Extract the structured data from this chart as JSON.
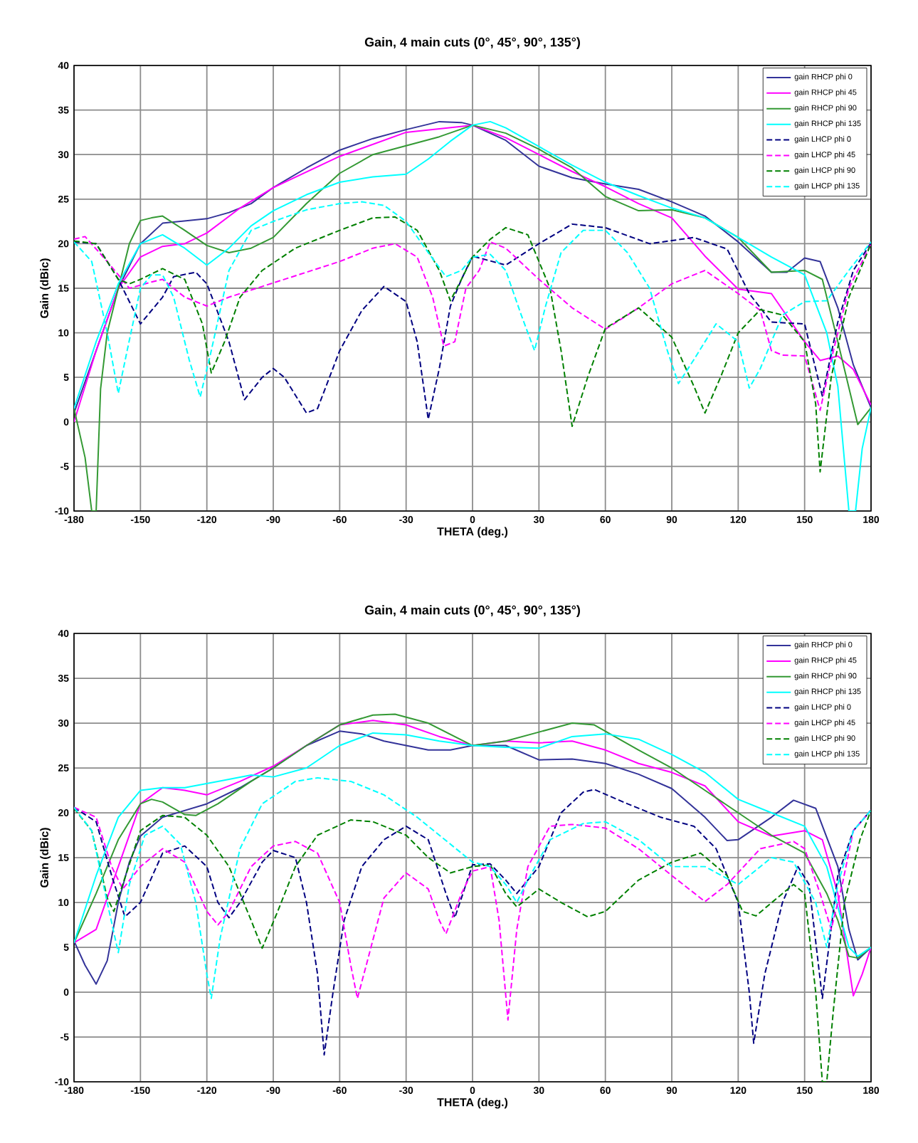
{
  "chart_data": [
    {
      "type": "line",
      "title": "Gain, 4 main cuts (0°, 45°, 90°, 135°)",
      "xlabel": "THETA (deg.)",
      "ylabel": "Gain (dBic)",
      "xlim": [
        -180,
        180
      ],
      "ylim": [
        -10,
        40
      ],
      "xticks": [
        -180,
        -150,
        -120,
        -90,
        -60,
        -30,
        0,
        30,
        60,
        90,
        120,
        150,
        180
      ],
      "yticks": [
        -10,
        -5,
        0,
        5,
        10,
        15,
        20,
        25,
        30,
        35,
        40
      ],
      "grid": true,
      "legend": "top right",
      "marker": "none",
      "series": [
        {
          "name": "gain RHCP phi 0",
          "color": "#333399",
          "line_style": "solid",
          "x": [
            -180,
            -160,
            -150,
            -140,
            -120,
            -110,
            -100,
            -90,
            -75,
            -60,
            -45,
            -30,
            -15,
            -5,
            0,
            15,
            30,
            45,
            60,
            75,
            90,
            105,
            120,
            135,
            142,
            150,
            157,
            165,
            172,
            180
          ],
          "values": [
            1,
            15,
            20,
            22.3,
            22.8,
            23.5,
            24.5,
            26.3,
            28.5,
            30.5,
            31.8,
            32.8,
            33.7,
            33.6,
            33.3,
            31.6,
            28.7,
            27.4,
            26.7,
            26.1,
            24.7,
            23.1,
            20.2,
            16.8,
            16.8,
            18.4,
            18,
            12.8,
            6.4,
            1.6
          ]
        },
        {
          "name": "gain RHCP phi 45",
          "color": "#ff00ff",
          "line_style": "solid",
          "x": [
            -180,
            -170,
            -160,
            -150,
            -140,
            -130,
            -120,
            -105,
            -90,
            -60,
            -30,
            0,
            15,
            30,
            45,
            60,
            75,
            90,
            105,
            120,
            135,
            150,
            157,
            165,
            172,
            180
          ],
          "values": [
            0,
            8,
            15,
            18.5,
            19.7,
            20,
            21.2,
            24,
            26.3,
            29.8,
            32.5,
            33.3,
            31.9,
            30,
            28.1,
            26.4,
            24.5,
            22.9,
            18.6,
            14.9,
            14.4,
            9,
            6.9,
            7.4,
            5.9,
            1.9
          ]
        },
        {
          "name": "gain RHCP phi 90",
          "color": "#339933",
          "line_style": "solid",
          "x": [
            -180,
            -175,
            -172,
            -170,
            -168,
            -165,
            -160,
            -155,
            -150,
            -145,
            -140,
            -130,
            -120,
            -110,
            -100,
            -90,
            -75,
            -60,
            -45,
            -30,
            -15,
            0,
            15,
            30,
            45,
            60,
            75,
            90,
            105,
            120,
            135,
            150,
            158,
            165,
            174,
            180
          ],
          "values": [
            1.5,
            -4,
            -10,
            -10,
            3.7,
            10,
            15,
            20,
            22.6,
            22.9,
            23.1,
            21.5,
            19.8,
            19,
            19.5,
            20.7,
            24.5,
            27.9,
            30,
            31,
            32,
            33.3,
            32.4,
            30.6,
            28.5,
            25.3,
            23.7,
            23.8,
            22.9,
            20.7,
            16.8,
            17,
            16,
            9,
            -0.3,
            1.6
          ]
        },
        {
          "name": "gain RHCP phi 135",
          "color": "#00ffff",
          "line_style": "solid",
          "x": [
            -180,
            -170,
            -160,
            -150,
            -140,
            -130,
            -120,
            -110,
            -100,
            -90,
            -75,
            -60,
            -45,
            -30,
            -20,
            -10,
            0,
            8,
            15,
            30,
            45,
            60,
            75,
            90,
            105,
            120,
            135,
            150,
            160,
            165,
            170,
            173,
            176,
            180
          ],
          "values": [
            1.5,
            9,
            15.5,
            20,
            21,
            19.5,
            17.6,
            19.5,
            22,
            23.7,
            25.5,
            26.9,
            27.5,
            27.8,
            29.5,
            31.5,
            33.3,
            33.7,
            33,
            30.9,
            28.8,
            26.9,
            25.4,
            24,
            22.9,
            20.7,
            18.5,
            16.5,
            10,
            4,
            -10,
            -10,
            -3,
            1.6
          ]
        },
        {
          "name": "gain LHCP phi 0",
          "color": "#000080",
          "line_style": "dashed",
          "x": [
            -180,
            -170,
            -160,
            -150,
            -140,
            -135,
            -125,
            -120,
            -110,
            -103,
            -95,
            -90,
            -85,
            -75,
            -70,
            -60,
            -50,
            -40,
            -30,
            -25,
            -20,
            -15,
            -10,
            -5,
            0,
            15,
            30,
            45,
            60,
            80,
            100,
            115,
            125,
            135,
            150,
            158,
            165,
            172,
            180
          ],
          "values": [
            20.2,
            20,
            16,
            11,
            14,
            16.3,
            16.8,
            15.5,
            9,
            2.5,
            5,
            6,
            5,
            1,
            1.5,
            8,
            12.5,
            15.2,
            13.5,
            9,
            0.3,
            6,
            13,
            16,
            18.6,
            17.6,
            20,
            22.2,
            21.8,
            20,
            20.7,
            19.4,
            14.4,
            11.2,
            11,
            2.9,
            11.2,
            17,
            20.1
          ]
        },
        {
          "name": "gain LHCP phi 45",
          "color": "#ff00ff",
          "line_style": "dashed",
          "x": [
            -180,
            -175,
            -165,
            -155,
            -145,
            -140,
            -130,
            -120,
            -110,
            -90,
            -60,
            -45,
            -35,
            -25,
            -18,
            -13,
            -8,
            -3,
            3,
            8,
            15,
            30,
            45,
            60,
            75,
            90,
            105,
            120,
            130,
            135,
            140,
            150,
            157,
            163,
            170,
            180
          ],
          "values": [
            20.5,
            20.8,
            18,
            15,
            15.7,
            16,
            14,
            13,
            14,
            15.6,
            18,
            19.5,
            20,
            18.5,
            14,
            8.5,
            9,
            15,
            17,
            20.2,
            19.5,
            16,
            12.8,
            10.4,
            12.8,
            15.5,
            17,
            14.4,
            12.5,
            8,
            7.5,
            7.4,
            1.3,
            8,
            15,
            20
          ]
        },
        {
          "name": "gain LHCP phi 90",
          "color": "#008000",
          "line_style": "dashed",
          "x": [
            -180,
            -170,
            -160,
            -155,
            -150,
            -140,
            -130,
            -122,
            -118,
            -112,
            -105,
            -95,
            -80,
            -60,
            -45,
            -35,
            -25,
            -15,
            -10,
            -5,
            0,
            8,
            15,
            25,
            35,
            40,
            45,
            52,
            60,
            75,
            90,
            100,
            105,
            112,
            120,
            130,
            140,
            150,
            155,
            157,
            162,
            170,
            180
          ],
          "values": [
            20.3,
            20,
            16,
            15.5,
            16,
            17.2,
            16,
            11,
            5.5,
            9,
            14,
            17,
            19.5,
            21.5,
            22.9,
            23,
            21.5,
            17,
            13.6,
            16,
            18.5,
            20.5,
            21.8,
            21,
            15,
            8,
            -0.5,
            5,
            10.5,
            12.8,
            9.5,
            4,
            1,
            5,
            10,
            12.6,
            12,
            9,
            2,
            -5.6,
            5,
            14,
            20
          ]
        },
        {
          "name": "gain LHCP phi 135",
          "color": "#00ffff",
          "line_style": "dashed",
          "x": [
            -180,
            -172,
            -165,
            -160,
            -156,
            -150,
            -145,
            -140,
            -135,
            -128,
            -123,
            -118,
            -110,
            -100,
            -90,
            -75,
            -60,
            -50,
            -40,
            -30,
            -20,
            -12,
            -5,
            0,
            8,
            15,
            22,
            28,
            33,
            40,
            50,
            60,
            70,
            80,
            88,
            93,
            100,
            110,
            120,
            125,
            130,
            140,
            150,
            160,
            170,
            180
          ],
          "values": [
            20.2,
            18,
            10,
            3.2,
            8,
            15,
            16.5,
            16.5,
            14,
            7,
            2.8,
            8,
            17,
            21.5,
            22.5,
            23.8,
            24.5,
            24.7,
            24.3,
            22.5,
            19,
            16.3,
            17,
            18.5,
            18.8,
            17,
            12,
            8,
            13,
            19,
            21.5,
            21.5,
            19,
            15,
            8,
            4.3,
            7,
            11,
            9,
            3.8,
            6,
            12,
            13.5,
            13.6,
            17,
            20.2
          ]
        }
      ]
    },
    {
      "type": "line",
      "title": "Gain, 4 main cuts (0°, 45°, 90°, 135°)",
      "xlabel": "THETA (deg.)",
      "ylabel": "Gain (dBic)",
      "xlim": [
        -180,
        180
      ],
      "ylim": [
        -10,
        40
      ],
      "xticks": [
        -180,
        -150,
        -120,
        -90,
        -60,
        -30,
        0,
        30,
        60,
        90,
        120,
        150,
        180
      ],
      "yticks": [
        -10,
        -5,
        0,
        5,
        10,
        15,
        20,
        25,
        30,
        35,
        40
      ],
      "grid": true,
      "legend": "top right",
      "marker": "none",
      "series": [
        {
          "name": "gain RHCP phi 0",
          "color": "#333399",
          "line_style": "solid",
          "x": [
            -180,
            -175,
            -170,
            -165,
            -160,
            -155,
            -150,
            -140,
            -120,
            -105,
            -90,
            -75,
            -60,
            -50,
            -40,
            -30,
            -20,
            -10,
            0,
            15,
            30,
            45,
            60,
            75,
            90,
            105,
            115,
            120,
            135,
            145,
            155,
            165,
            170,
            174,
            180
          ],
          "values": [
            5.7,
            3,
            0.9,
            3.5,
            10,
            14.5,
            17.4,
            19.5,
            21,
            22.8,
            25,
            27.5,
            29.1,
            28.8,
            28,
            27.5,
            27,
            27,
            27.5,
            27.5,
            25.9,
            26,
            25.5,
            24.3,
            22.7,
            19.5,
            16.9,
            17,
            19.5,
            21.4,
            20.5,
            14,
            7,
            3.6,
            5
          ]
        },
        {
          "name": "gain RHCP phi 45",
          "color": "#ff00ff",
          "line_style": "solid",
          "x": [
            -180,
            -170,
            -160,
            -150,
            -140,
            -130,
            -120,
            -105,
            -90,
            -75,
            -60,
            -45,
            -30,
            -15,
            0,
            15,
            30,
            45,
            60,
            75,
            90,
            105,
            120,
            135,
            150,
            158,
            165,
            172,
            176,
            180
          ],
          "values": [
            5.5,
            7,
            14,
            21,
            22.8,
            22.5,
            22,
            23.5,
            25.2,
            27.5,
            29.8,
            30.3,
            29.8,
            28.5,
            27.5,
            28,
            27.8,
            28,
            27,
            25.5,
            24.5,
            23,
            19,
            17.4,
            18,
            17,
            11,
            -0.4,
            2,
            5
          ]
        },
        {
          "name": "gain RHCP phi 90",
          "color": "#339933",
          "line_style": "solid",
          "x": [
            -180,
            -170,
            -160,
            -150,
            -145,
            -140,
            -130,
            -125,
            -115,
            -100,
            -90,
            -75,
            -60,
            -45,
            -35,
            -20,
            0,
            15,
            30,
            45,
            55,
            75,
            90,
            105,
            120,
            135,
            150,
            160,
            165,
            170,
            174,
            180
          ],
          "values": [
            5.5,
            11,
            17,
            21,
            21.5,
            21.2,
            19.8,
            19.7,
            21,
            23.5,
            25,
            27.5,
            29.8,
            30.9,
            31,
            30,
            27.5,
            28,
            29,
            30,
            29.8,
            27,
            25,
            22.5,
            20,
            17.5,
            15.5,
            11,
            8,
            4,
            3.8,
            5
          ]
        },
        {
          "name": "gain RHCP phi 135",
          "color": "#00ffff",
          "line_style": "solid",
          "x": [
            -180,
            -170,
            -160,
            -150,
            -140,
            -130,
            -115,
            -100,
            -90,
            -75,
            -60,
            -45,
            -30,
            -15,
            0,
            15,
            30,
            45,
            60,
            75,
            90,
            105,
            120,
            135,
            150,
            160,
            170,
            174,
            180
          ],
          "values": [
            5.5,
            13,
            19.5,
            22.5,
            22.8,
            22.8,
            23.5,
            24.2,
            24,
            25,
            27.5,
            28.9,
            28.7,
            28,
            27.5,
            27.3,
            27.2,
            28.5,
            28.8,
            28.2,
            26.5,
            24.5,
            21.5,
            20,
            18.5,
            14,
            5,
            4,
            5
          ]
        },
        {
          "name": "gain LHCP phi 0",
          "color": "#000080",
          "line_style": "dashed",
          "x": [
            -180,
            -170,
            -163,
            -157,
            -150,
            -140,
            -130,
            -120,
            -115,
            -110,
            -105,
            -95,
            -90,
            -80,
            -75,
            -70,
            -67,
            -63,
            -58,
            -50,
            -40,
            -30,
            -20,
            -12,
            -8,
            0,
            8,
            15,
            20,
            30,
            40,
            50,
            55,
            70,
            85,
            100,
            110,
            120,
            125,
            127,
            132,
            140,
            147,
            152,
            158,
            165,
            172,
            180
          ],
          "values": [
            20.6,
            19,
            13,
            8.4,
            10,
            15.5,
            16.3,
            14,
            10,
            8.3,
            10,
            14.5,
            15.8,
            15,
            10,
            2,
            -7,
            0,
            8,
            14,
            17,
            18.5,
            17,
            11,
            8.3,
            14.2,
            14.3,
            12.5,
            11,
            14,
            20,
            22.3,
            22.6,
            21,
            19.5,
            18.5,
            16,
            10,
            0,
            -5.7,
            2,
            10,
            14,
            12,
            -0.7,
            13,
            18,
            20.3
          ]
        },
        {
          "name": "gain LHCP phi 45",
          "color": "#ff00ff",
          "line_style": "dashed",
          "x": [
            -180,
            -170,
            -163,
            -158,
            -150,
            -140,
            -130,
            -120,
            -115,
            -110,
            -100,
            -90,
            -80,
            -70,
            -60,
            -55,
            -52,
            -48,
            -40,
            -30,
            -20,
            -15,
            -12,
            -5,
            0,
            8,
            12,
            16,
            20,
            25,
            35,
            45,
            60,
            75,
            90,
            105,
            115,
            130,
            145,
            150,
            157,
            162,
            167,
            172,
            180
          ],
          "values": [
            20.6,
            19.5,
            14,
            11.5,
            14,
            16,
            14.5,
            9,
            7.5,
            9,
            14,
            16.3,
            16.8,
            15.5,
            10,
            3,
            -0.7,
            3,
            10.5,
            13.3,
            11.5,
            8,
            6.5,
            11,
            13.5,
            14,
            8,
            -3.1,
            7,
            14,
            18.5,
            18.7,
            18.3,
            16,
            13,
            10.1,
            12,
            16,
            16.8,
            16,
            11,
            7,
            12,
            18,
            20.3
          ]
        },
        {
          "name": "gain LHCP phi 90",
          "color": "#008000",
          "line_style": "dashed",
          "x": [
            -180,
            -172,
            -165,
            -162,
            -158,
            -150,
            -140,
            -130,
            -120,
            -110,
            -100,
            -95,
            -88,
            -80,
            -70,
            -55,
            -45,
            -30,
            -20,
            -10,
            0,
            8,
            15,
            20,
            30,
            40,
            52,
            60,
            75,
            90,
            103,
            115,
            122,
            128,
            140,
            145,
            150,
            155,
            158,
            160,
            163,
            168,
            175,
            180
          ],
          "values": [
            20.5,
            18,
            10.5,
            9,
            12,
            18,
            19.7,
            19.5,
            17.5,
            14,
            8,
            4.9,
            9,
            14,
            17.5,
            19.2,
            19,
            17.5,
            15,
            13.3,
            14,
            14.2,
            11,
            9.5,
            11.5,
            10,
            8.4,
            9,
            12.5,
            14.5,
            15.5,
            13,
            9,
            8.5,
            11,
            12,
            11,
            0,
            -10,
            -10,
            -2,
            10,
            17,
            20.3
          ]
        },
        {
          "name": "gain LHCP phi 135",
          "color": "#00ffff",
          "line_style": "dashed",
          "x": [
            -180,
            -172,
            -165,
            -160,
            -155,
            -148,
            -140,
            -132,
            -125,
            -120,
            -118,
            -114,
            -105,
            -95,
            -80,
            -70,
            -55,
            -40,
            -25,
            -15,
            0,
            8,
            15,
            20,
            25,
            35,
            50,
            60,
            75,
            90,
            105,
            120,
            135,
            145,
            155,
            160,
            165,
            172,
            180
          ],
          "values": [
            20.6,
            18,
            10,
            4.4,
            12,
            17.5,
            18.5,
            16.5,
            10,
            2,
            -0.7,
            6,
            16,
            21,
            23.5,
            23.9,
            23.5,
            22,
            19.5,
            17.5,
            14.5,
            14,
            12,
            10,
            12.5,
            17,
            18.8,
            19,
            17,
            14,
            14,
            12,
            15,
            14.5,
            10,
            5,
            12,
            18,
            20.3
          ]
        }
      ]
    }
  ]
}
